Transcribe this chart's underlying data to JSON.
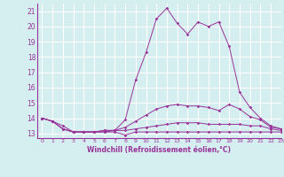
{
  "x": [
    0,
    1,
    2,
    3,
    4,
    5,
    6,
    7,
    8,
    9,
    10,
    11,
    12,
    13,
    14,
    15,
    16,
    17,
    18,
    19,
    20,
    21,
    22,
    23
  ],
  "line1": [
    14.0,
    13.8,
    13.3,
    13.1,
    13.1,
    13.1,
    13.1,
    13.1,
    12.9,
    13.1,
    13.1,
    13.1,
    13.1,
    13.1,
    13.1,
    13.1,
    13.1,
    13.1,
    13.1,
    13.1,
    13.1,
    13.1,
    13.1,
    13.1
  ],
  "line2": [
    14.0,
    13.8,
    13.3,
    13.1,
    13.1,
    13.1,
    13.1,
    13.2,
    13.2,
    13.3,
    13.4,
    13.5,
    13.6,
    13.7,
    13.7,
    13.7,
    13.6,
    13.6,
    13.6,
    13.6,
    13.5,
    13.5,
    13.3,
    13.2
  ],
  "line3": [
    14.0,
    13.8,
    13.3,
    13.1,
    13.1,
    13.1,
    13.2,
    13.2,
    13.4,
    13.8,
    14.2,
    14.6,
    14.8,
    14.9,
    14.8,
    14.8,
    14.7,
    14.5,
    14.9,
    14.6,
    14.1,
    13.9,
    13.4,
    13.3
  ],
  "line4": [
    14.0,
    13.8,
    13.5,
    13.1,
    13.1,
    13.1,
    13.2,
    13.2,
    13.9,
    16.5,
    18.3,
    20.5,
    21.2,
    20.2,
    19.5,
    20.3,
    20.0,
    20.3,
    18.7,
    15.7,
    14.7,
    14.0,
    13.5,
    13.3
  ],
  "color": "#993399",
  "bg_color": "#d5eef0",
  "grid_color": "#ffffff",
  "xlabel": "Windchill (Refroidissement éolien,°C)",
  "ylim": [
    12.7,
    21.5
  ],
  "xlim": [
    -0.5,
    23
  ],
  "yticks": [
    13,
    14,
    15,
    16,
    17,
    18,
    19,
    20,
    21
  ],
  "xticks": [
    0,
    1,
    2,
    3,
    4,
    5,
    6,
    7,
    8,
    9,
    10,
    11,
    12,
    13,
    14,
    15,
    16,
    17,
    18,
    19,
    20,
    21,
    22,
    23
  ]
}
